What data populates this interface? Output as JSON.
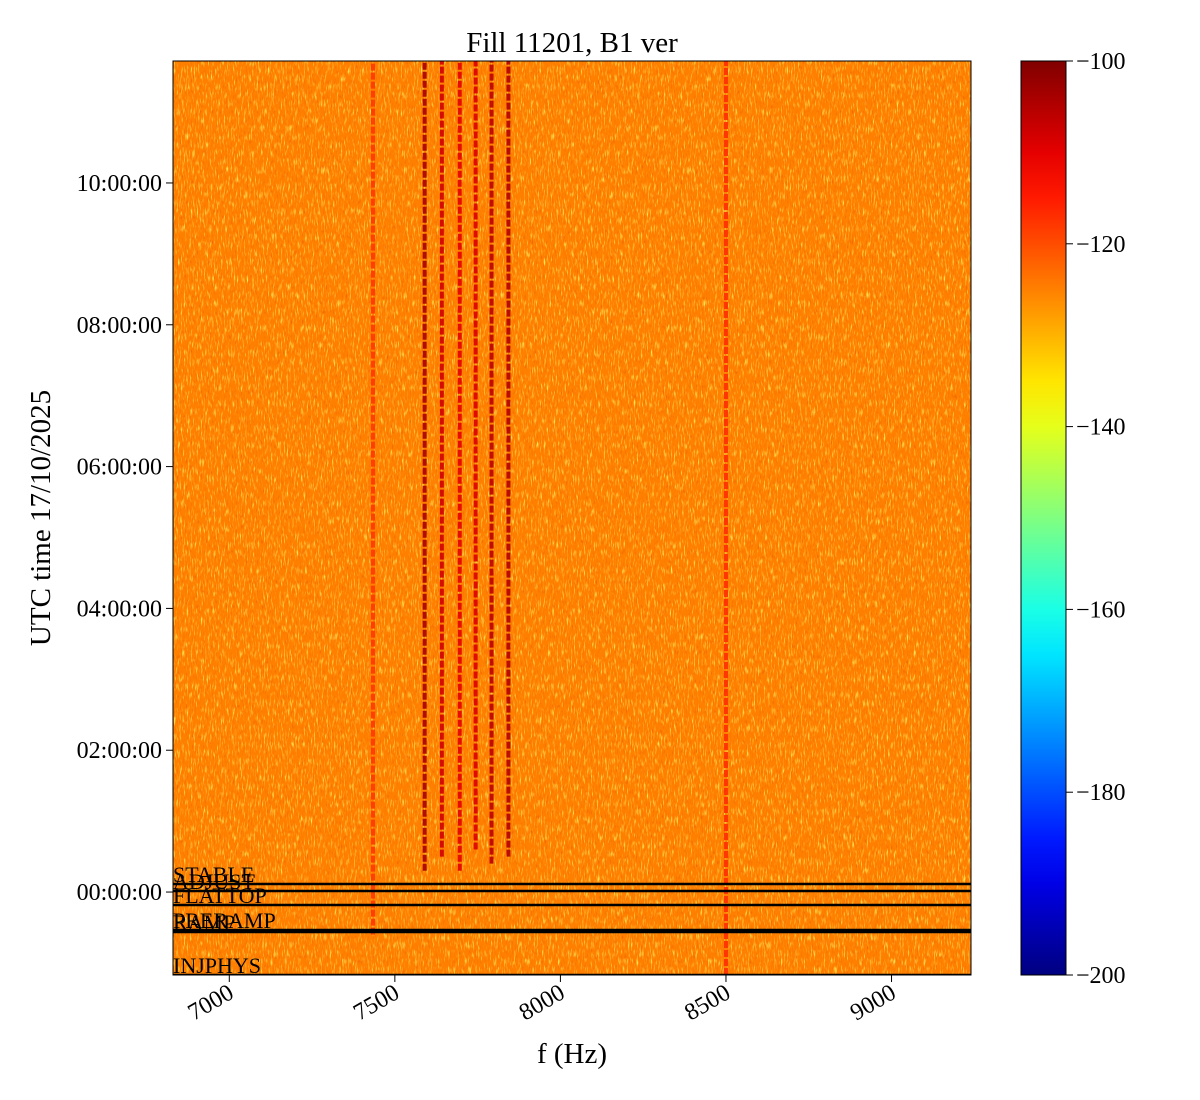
{
  "chart_data": {
    "type": "spectrogram",
    "title": "Fill 11201, B1 ver",
    "xlabel": "f (Hz)",
    "ylabel": "UTC time 17/10/2025",
    "xlim": [
      6830,
      9240
    ],
    "xticks": [
      7000,
      7500,
      8000,
      8500,
      9000
    ],
    "ylim": [
      -1.17,
      11.72
    ],
    "yticks": [
      {
        "value": 0,
        "label": "00:00:00"
      },
      {
        "value": 2,
        "label": "02:00:00"
      },
      {
        "value": 4,
        "label": "04:00:00"
      },
      {
        "value": 6,
        "label": "06:00:00"
      },
      {
        "value": 8,
        "label": "08:00:00"
      },
      {
        "value": 10,
        "label": "10:00:00"
      }
    ],
    "colormap": "jet",
    "clim": [
      -200,
      -100
    ],
    "cticks": [
      {
        "value": -100,
        "label": "−100"
      },
      {
        "value": -120,
        "label": "−120"
      },
      {
        "value": -140,
        "label": "−140"
      },
      {
        "value": -160,
        "label": "−160"
      },
      {
        "value": -180,
        "label": "−180"
      },
      {
        "value": -200,
        "label": "−200"
      }
    ],
    "background_level": -125,
    "spectral_lines": {
      "f": [
        7434,
        7590,
        7642,
        7696,
        7744,
        7792,
        7843,
        8500
      ],
      "level": [
        -118,
        -104,
        -108,
        -110,
        -109,
        -106,
        -105,
        -117
      ],
      "t_start": [
        -0.6,
        0.3,
        0.5,
        0.3,
        0.6,
        0.4,
        0.5,
        -1.17
      ]
    },
    "annotations": [
      {
        "text": "STABLE",
        "t": 0.113
      },
      {
        "text": "ADJUST",
        "t": 0.014
      },
      {
        "text": "FLATTOP",
        "t": -0.183
      },
      {
        "text": "PRERAMP",
        "t": -0.535
      },
      {
        "text": "RAMP",
        "t": -0.563
      },
      {
        "text": "INJPHYS",
        "t": -1.17
      }
    ]
  }
}
